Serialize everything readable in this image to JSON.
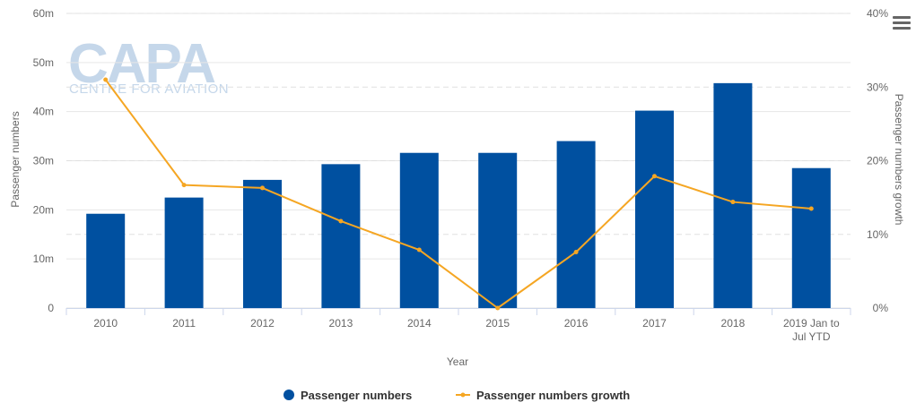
{
  "chart_data": {
    "type": "bar",
    "categories": [
      "2010",
      "2011",
      "2012",
      "2013",
      "2014",
      "2015",
      "2016",
      "2017",
      "2018",
      "2019 Jan to Jul YTD"
    ],
    "series": [
      {
        "name": "Passenger numbers",
        "type": "bar",
        "axis": "left",
        "color": "#0050a0",
        "values": [
          19.2,
          22.5,
          26.1,
          29.3,
          31.6,
          31.6,
          34.0,
          40.2,
          45.8,
          28.5
        ]
      },
      {
        "name": "Passenger numbers growth",
        "type": "line",
        "axis": "right",
        "color": "#f5a623",
        "values": [
          31.0,
          16.7,
          16.3,
          11.8,
          7.9,
          0.0,
          7.6,
          17.9,
          14.4,
          13.5
        ]
      }
    ],
    "xlabel": "Year",
    "ylabel": "Passenger numbers",
    "ylabel_right": "Passenger numbers growth",
    "ylim": [
      0,
      60
    ],
    "ylim_right": [
      0,
      40
    ],
    "yticks": [
      "0",
      "10m",
      "20m",
      "30m",
      "40m",
      "50m",
      "60m"
    ],
    "yticks_right": [
      "0%",
      "10%",
      "20%",
      "30%",
      "40%"
    ],
    "xtick_labels": [
      [
        "2010"
      ],
      [
        "2011"
      ],
      [
        "2012"
      ],
      [
        "2013"
      ],
      [
        "2014"
      ],
      [
        "2015"
      ],
      [
        "2016"
      ],
      [
        "2017"
      ],
      [
        "2018"
      ],
      [
        "2019 Jan to",
        "Jul YTD"
      ]
    ],
    "grid": true,
    "legend_position": "bottom-center"
  },
  "watermark": {
    "line1": "CAPA",
    "line2": "CENTRE FOR AVIATION"
  },
  "menu": {
    "icon": "hamburger-menu-icon"
  }
}
